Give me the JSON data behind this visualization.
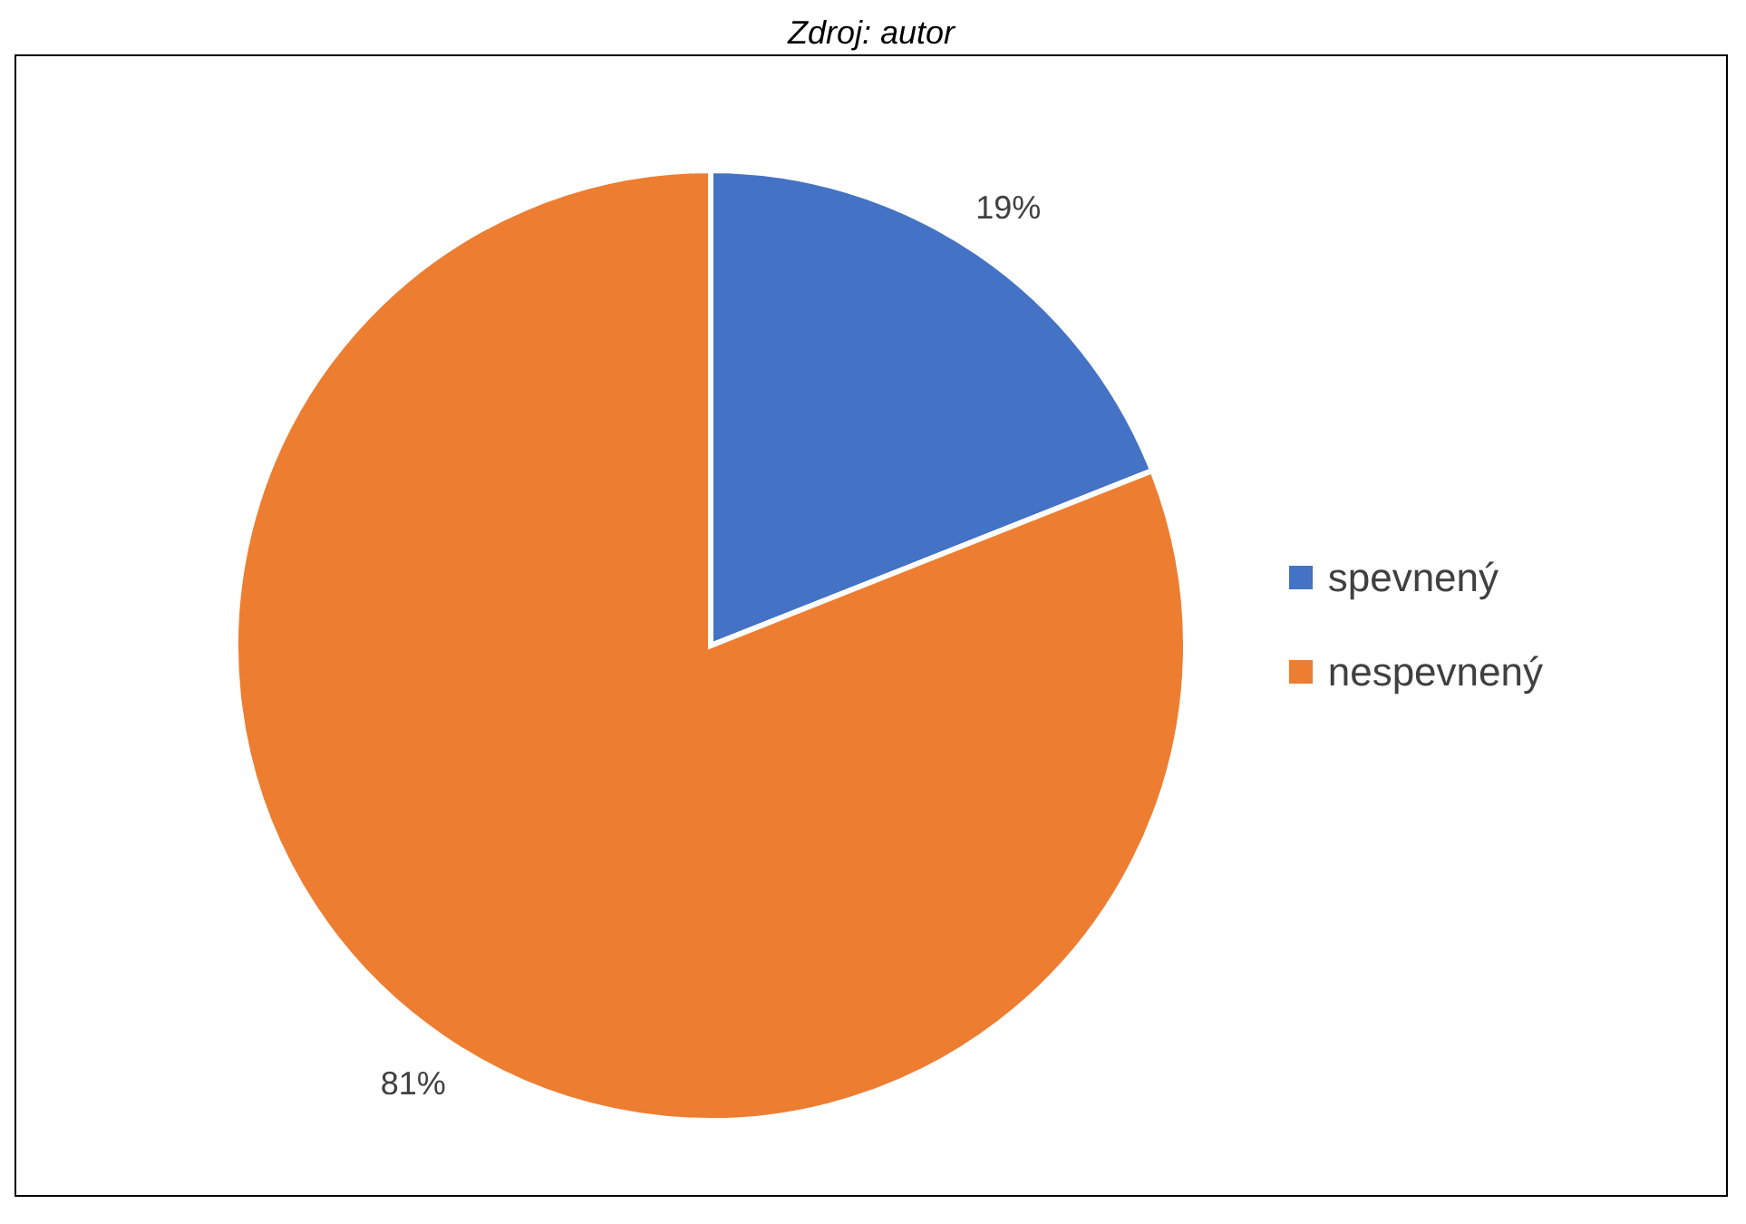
{
  "chart_data": {
    "type": "pie",
    "annotations": [
      "Zdroj: autor"
    ],
    "categories": [
      "spevnený",
      "nespevnený"
    ],
    "values": [
      19,
      81
    ],
    "colors": [
      "#4472c4",
      "#ed7d31"
    ],
    "value_labels": [
      "19%",
      "81%"
    ],
    "legend": "right"
  }
}
